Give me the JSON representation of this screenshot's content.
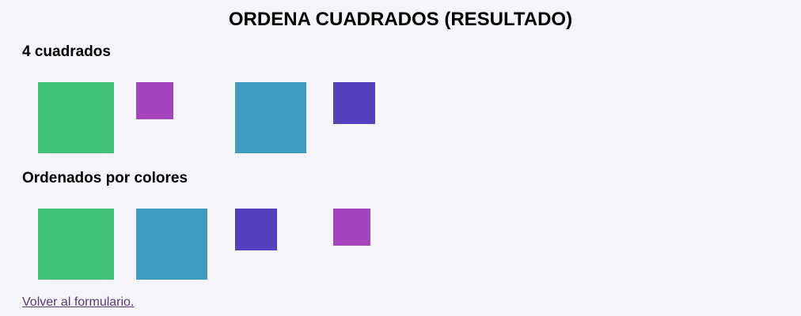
{
  "page": {
    "title": "ORDENA CUADRADOS (RESULTADO)"
  },
  "original": {
    "heading": "4 cuadrados",
    "squares": [
      {
        "color": "#41c27a"
      },
      {
        "color": "#a545bd"
      },
      {
        "color": "#419bbf"
      },
      {
        "color": "#5541bd"
      }
    ]
  },
  "sorted": {
    "heading": "Ordenados por colores",
    "squares": [
      {
        "color": "#41c27a"
      },
      {
        "color": "#419bbf"
      },
      {
        "color": "#5541bd"
      },
      {
        "color": "#a545bd"
      }
    ]
  },
  "footer": {
    "back_link": "Volver al formulario."
  }
}
